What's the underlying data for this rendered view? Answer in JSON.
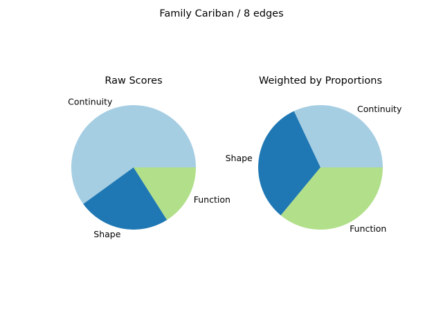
{
  "figure": {
    "suptitle": "Family Cariban / 8 edges"
  },
  "chart_data": [
    {
      "type": "pie",
      "title": "Raw Scores",
      "labels": [
        "Continuity",
        "Shape",
        "Function"
      ],
      "values": [
        0.6,
        0.24,
        0.16
      ],
      "colors": [
        "#a6cee3",
        "#1f78b4",
        "#b2df8a"
      ],
      "start_angle_deg": 0,
      "direction": "counterclockwise"
    },
    {
      "type": "pie",
      "title": "Weighted by Proportions",
      "labels": [
        "Continuity",
        "Shape",
        "Function"
      ],
      "values": [
        0.32,
        0.32,
        0.36
      ],
      "colors": [
        "#a6cee3",
        "#1f78b4",
        "#b2df8a"
      ],
      "start_angle_deg": 0,
      "direction": "counterclockwise"
    }
  ]
}
